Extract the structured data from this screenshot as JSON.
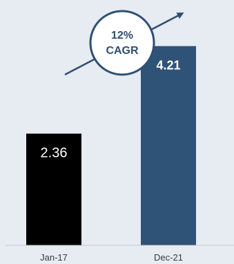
{
  "chart_data": {
    "type": "bar",
    "categories": [
      "Jan-17",
      "Dec-21"
    ],
    "values": [
      2.36,
      4.21
    ],
    "value_labels": [
      "2.36",
      "4.21"
    ],
    "bar_colors": [
      "#000000",
      "#2f5377"
    ],
    "ylim": [
      0,
      4.6
    ],
    "grid": false,
    "annotation": {
      "line1": "12%",
      "line2": "CAGR"
    }
  },
  "colors": {
    "background": "#e7ebf2",
    "axis": "#c4c8cf",
    "badge_border": "#2f4e73",
    "arrow": "#2f4e73"
  }
}
